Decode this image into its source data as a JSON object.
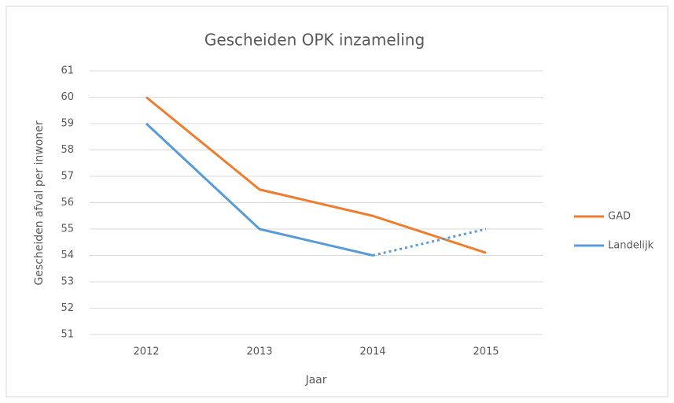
{
  "chart_data": {
    "type": "line",
    "title": "Gescheiden OPK inzameling",
    "x_label": "Jaar",
    "y_label": "Gescheiden afval per inwoner",
    "categories": [
      "2012",
      "2013",
      "2014",
      "2015"
    ],
    "series": [
      {
        "name": "GAD",
        "color": "#ed7d31",
        "values": [
          60,
          56.5,
          55.5,
          54.1
        ]
      },
      {
        "name": "Landelijk",
        "color": "#5b9bd5",
        "values": [
          59,
          55,
          54,
          55
        ],
        "dotted_from": 2
      }
    ],
    "ylim": [
      51,
      61
    ],
    "yticks": [
      51,
      52,
      53,
      54,
      55,
      56,
      57,
      58,
      59,
      60,
      61
    ],
    "grid": true,
    "legend": "right"
  }
}
